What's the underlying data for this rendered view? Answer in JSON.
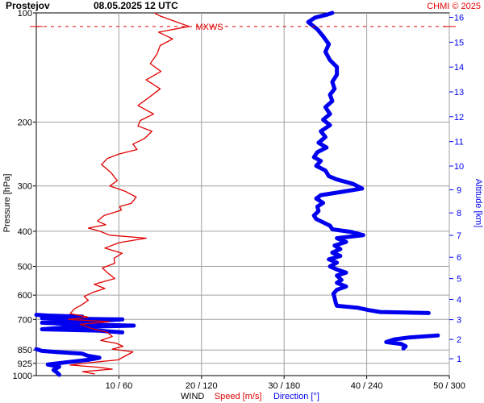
{
  "chart_data": {
    "type": "line",
    "title_station": "Prostejov",
    "title_time": "08.05.2025 12 UTC",
    "credit": "CHMI © 2025",
    "ylabel_left": "Pressure [hPa]",
    "ylabel_right": "Altitude [km]",
    "xlabel_prefix": "WIND",
    "xlabel_speed": "Speed [m/s]",
    "xlabel_direction": "Direction [°]",
    "annotation_mxws": "MXWS",
    "y_scale": "log",
    "ylim_hpa": [
      1000,
      100
    ],
    "xlim_speed_ms": [
      0,
      50
    ],
    "xlim_direction_deg": [
      0,
      360
    ],
    "grid": true,
    "pressure_ticks": [
      "100",
      "200",
      "300",
      "400",
      "500",
      "600",
      "700",
      "850",
      "925",
      "1000"
    ],
    "x_ticks": [
      "10 / 60",
      "20 / 120",
      "30 / 180",
      "40 / 240",
      "50 / 300"
    ],
    "altitude_ticks": [
      "1",
      "2",
      "3",
      "4",
      "5",
      "6",
      "7",
      "8",
      "9",
      "10",
      "11",
      "12",
      "13",
      "14",
      "15",
      "16"
    ],
    "mxws": {
      "speed_ms": 18.5,
      "pressure_hpa": 109
    },
    "series": [
      {
        "name": "Speed [m/s]",
        "color": "#e00000",
        "x_label": "speed_ms",
        "points": [
          [
            7.1,
            990
          ],
          [
            5.6,
            975
          ],
          [
            9.2,
            960
          ],
          [
            7.5,
            948
          ],
          [
            4.1,
            935
          ],
          [
            6.3,
            922
          ],
          [
            9.9,
            905
          ],
          [
            10.9,
            880
          ],
          [
            11.7,
            860
          ],
          [
            9.2,
            845
          ],
          [
            10.5,
            830
          ],
          [
            9.7,
            815
          ],
          [
            7.8,
            800
          ],
          [
            9.2,
            780
          ],
          [
            8.6,
            760
          ],
          [
            6.6,
            740
          ],
          [
            5.3,
            722
          ],
          [
            8.9,
            710
          ],
          [
            3.9,
            700
          ],
          [
            6.3,
            690
          ],
          [
            4.1,
            675
          ],
          [
            4.6,
            655
          ],
          [
            5.4,
            640
          ],
          [
            6.3,
            620
          ],
          [
            5.8,
            605
          ],
          [
            6.8,
            590
          ],
          [
            8.3,
            575
          ],
          [
            7.0,
            560
          ],
          [
            9.5,
            540
          ],
          [
            8.6,
            520
          ],
          [
            8.0,
            505
          ],
          [
            9.5,
            490
          ],
          [
            9.4,
            475
          ],
          [
            10.4,
            460
          ],
          [
            8.3,
            445
          ],
          [
            10.0,
            430
          ],
          [
            13.3,
            418
          ],
          [
            8.9,
            410
          ],
          [
            7.7,
            400
          ],
          [
            6.3,
            392
          ],
          [
            8.4,
            384
          ],
          [
            7.4,
            375
          ],
          [
            8.2,
            362
          ],
          [
            10.3,
            350
          ],
          [
            10.1,
            342
          ],
          [
            11.5,
            335
          ],
          [
            12.1,
            322
          ],
          [
            10.7,
            310
          ],
          [
            8.9,
            300
          ],
          [
            9.8,
            290
          ],
          [
            9.0,
            275
          ],
          [
            7.9,
            262
          ],
          [
            8.6,
            252
          ],
          [
            10.0,
            245
          ],
          [
            12.2,
            238
          ],
          [
            11.7,
            230
          ],
          [
            13.1,
            222
          ],
          [
            14.0,
            212
          ],
          [
            12.3,
            205
          ],
          [
            12.6,
            198
          ],
          [
            14.2,
            190
          ],
          [
            12.3,
            180
          ],
          [
            13.8,
            170
          ],
          [
            15.0,
            162
          ],
          [
            13.3,
            153
          ],
          [
            15.1,
            145
          ],
          [
            13.8,
            138
          ],
          [
            14.6,
            130
          ],
          [
            15.0,
            123
          ],
          [
            16.5,
            118
          ],
          [
            14.8,
            113
          ],
          [
            18.5,
            109
          ],
          [
            16.5,
            105
          ],
          [
            15.0,
            102
          ],
          [
            14.3,
            100
          ]
        ]
      },
      {
        "name": "Direction [°]",
        "color": "#0000ee",
        "x_label": "direction_deg",
        "points": [
          [
            20,
            995
          ],
          [
            18,
            980
          ],
          [
            15,
            965
          ],
          [
            20,
            945
          ],
          [
            10,
            932
          ],
          [
            25,
            920
          ],
          [
            45,
            905
          ],
          [
            55,
            893
          ],
          [
            45,
            882
          ],
          [
            40,
            870
          ],
          [
            20,
            862
          ],
          [
            5,
            855
          ],
          [
            0,
            845
          ],
          [
            320,
            842
          ],
          [
            322,
            830
          ],
          [
            318,
            818
          ],
          [
            305,
            808
          ],
          [
            312,
            795
          ],
          [
            325,
            785
          ],
          [
            350,
            775
          ],
          [
            75,
            760
          ],
          [
            55,
            752
          ],
          [
            5,
            745
          ],
          [
            30,
            735
          ],
          [
            85,
            728
          ],
          [
            35,
            722
          ],
          [
            5,
            715
          ],
          [
            60,
            705
          ],
          [
            75,
            700
          ],
          [
            5,
            695
          ],
          [
            40,
            688
          ],
          [
            10,
            683
          ],
          [
            0,
            680
          ],
          [
            342,
            672
          ],
          [
            300,
            668
          ],
          [
            290,
            660
          ],
          [
            280,
            650
          ],
          [
            262,
            642
          ],
          [
            261,
            630
          ],
          [
            260,
            610
          ],
          [
            259,
            595
          ],
          [
            262,
            580
          ],
          [
            270,
            568
          ],
          [
            262,
            555
          ],
          [
            266,
            545
          ],
          [
            262,
            530
          ],
          [
            270,
            520
          ],
          [
            262,
            510
          ],
          [
            256,
            500
          ],
          [
            262,
            488
          ],
          [
            255,
            478
          ],
          [
            265,
            468
          ],
          [
            258,
            458
          ],
          [
            265,
            448
          ],
          [
            260,
            438
          ],
          [
            270,
            428
          ],
          [
            262,
            418
          ],
          [
            285,
            410
          ],
          [
            275,
            402
          ],
          [
            258,
            395
          ],
          [
            256,
            386
          ],
          [
            250,
            378
          ],
          [
            244,
            370
          ],
          [
            242,
            362
          ],
          [
            246,
            352
          ],
          [
            245,
            342
          ],
          [
            250,
            334
          ],
          [
            244,
            325
          ],
          [
            248,
            318
          ],
          [
            262,
            313
          ],
          [
            284,
            305
          ],
          [
            276,
            296
          ],
          [
            262,
            288
          ],
          [
            255,
            282
          ],
          [
            252,
            272
          ],
          [
            244,
            264
          ],
          [
            248,
            256
          ],
          [
            242,
            250
          ],
          [
            245,
            242
          ],
          [
            253,
            235
          ],
          [
            246,
            228
          ],
          [
            252,
            220
          ],
          [
            248,
            212
          ],
          [
            256,
            204
          ],
          [
            250,
            197
          ],
          [
            256,
            190
          ],
          [
            252,
            182
          ],
          [
            258,
            175
          ],
          [
            256,
            168
          ],
          [
            260,
            162
          ],
          [
            258,
            155
          ],
          [
            262,
            148
          ],
          [
            262,
            141
          ],
          [
            256,
            135
          ],
          [
            252,
            128
          ],
          [
            255,
            122
          ],
          [
            250,
            116
          ],
          [
            245,
            111
          ],
          [
            237,
            106
          ],
          [
            243,
            103
          ],
          [
            254,
            101
          ],
          [
            258,
            100
          ]
        ]
      }
    ]
  }
}
